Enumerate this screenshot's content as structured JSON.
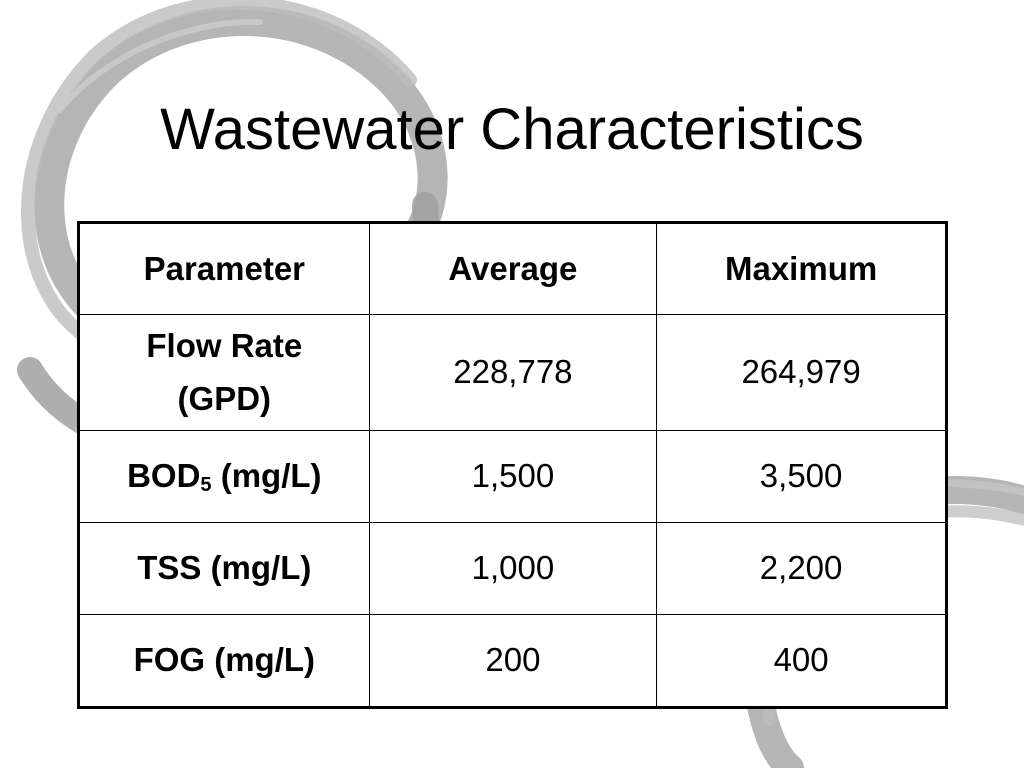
{
  "slide": {
    "title": "Wastewater Characteristics"
  },
  "table": {
    "headers": [
      "Parameter",
      "Average",
      "Maximum"
    ],
    "rows": [
      {
        "parameter_line1": "Flow Rate",
        "parameter_line2": "(GPD)",
        "average": "228,778",
        "maximum": "264,979"
      },
      {
        "parameter_main": "BOD",
        "parameter_subscript": "5",
        "parameter_units": " (mg/L)",
        "average": "1,500",
        "maximum": "3,500"
      },
      {
        "parameter": "TSS (mg/L)",
        "average": "1,000",
        "maximum": "2,200"
      },
      {
        "parameter": "FOG (mg/L)",
        "average": "200",
        "maximum": "400"
      }
    ]
  },
  "colors": {
    "text": "#000000",
    "background": "#ffffff",
    "swirl": "#9a9a9a"
  },
  "decoration": {
    "top_left_swirl": "brush-circle",
    "bottom_right_swirl": "brush-circle"
  }
}
